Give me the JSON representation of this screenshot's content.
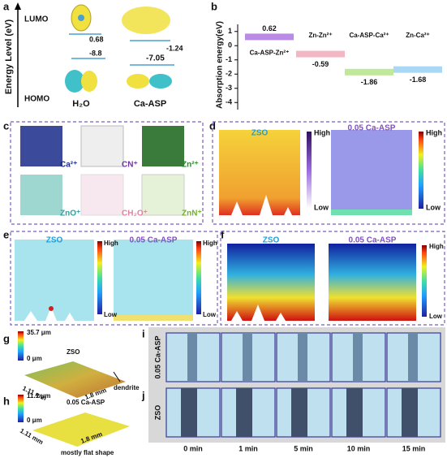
{
  "panel_a": {
    "label": "a",
    "y_axis_label": "Energy Level (eV)",
    "lumo": "LUMO",
    "homo": "HOMO",
    "h2o_lumo": "0.68",
    "asp_lumo": "-1.24",
    "h2o_homo": "-8.8",
    "asp_homo": "-7.05",
    "molecules": [
      "H₂O",
      "Ca-ASP"
    ]
  },
  "panel_b": {
    "label": "b",
    "y_axis_label": "Absorption energy(eV)",
    "categories": [
      "Ca-ASP-Zn²⁺",
      "Zn-Zn²⁺",
      "Ca-ASP-Ca²⁺",
      "Zn-Ca²⁺"
    ],
    "values": [
      0.62,
      -0.59,
      -1.86,
      -1.68
    ],
    "colors": [
      "#b98ae6",
      "#f4b6c2",
      "#bfe89a",
      "#a9d8f5"
    ],
    "ylim": [
      -4.5,
      1.5
    ],
    "yticks": [
      1,
      0,
      -1,
      -2,
      -3,
      -4
    ]
  },
  "panel_c": {
    "label": "c",
    "species": [
      "Ca²⁺",
      "CN⁺",
      "Zn²⁺",
      "ZnO⁺",
      "CH₂O⁺",
      "ZnN⁺"
    ]
  },
  "panel_d": {
    "label": "d",
    "left": "ZSO",
    "right": "0.05 Ca-ASP",
    "high": "High",
    "low": "Low"
  },
  "panel_e": {
    "label": "e",
    "left": "ZSO",
    "right": "0.05 Ca-ASP",
    "high": "High",
    "low": "Low"
  },
  "panel_f": {
    "label": "f",
    "left": "ZSO",
    "right": "0.05 Ca-ASP",
    "high": "High",
    "low": "Low"
  },
  "panel_g": {
    "label": "g",
    "max": "35.7 μm",
    "min": "0 μm",
    "sample": "ZSO",
    "width": "1.11 mm",
    "length": "1.8 mm",
    "note": "dendrite"
  },
  "panel_h": {
    "label": "h",
    "max": "11.1 μm",
    "min": "0 μm",
    "sample": "0.05 Ca-ASP",
    "width": "1.11 mm",
    "length": "1.8 mm",
    "note": "mostly flat shape"
  },
  "panel_ij": {
    "label_i": "i",
    "label_j": "j",
    "row_i": "0.05 Ca-ASP",
    "row_j": "ZSO",
    "times": [
      "0 min",
      "1 min",
      "5 min",
      "10 min",
      "15 min"
    ]
  }
}
